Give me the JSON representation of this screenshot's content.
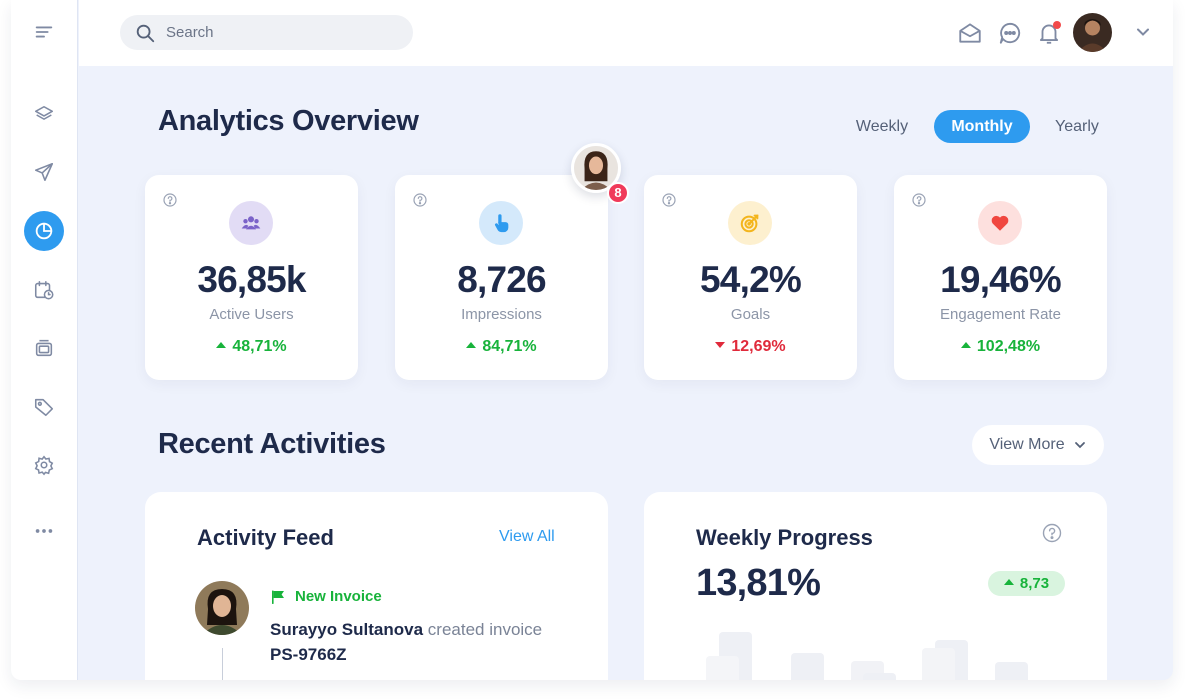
{
  "search": {
    "placeholder": "Search"
  },
  "icons": {
    "menu": "menu-icon",
    "layers": "layers-icon",
    "send": "send-icon",
    "analytics": "pie-chart-icon",
    "calendar": "calendar-clock-icon",
    "media": "media-icon",
    "tag": "tag-icon",
    "settings": "gear-icon",
    "more": "more-dots-icon",
    "mail": "mail-icon",
    "chat": "chat-icon",
    "bell": "bell-icon"
  },
  "colors": {
    "accent": "#2e9bef",
    "positive": "#18b33b",
    "negative": "#e02a3b",
    "background": "#eef2fc"
  },
  "overview": {
    "title": "Analytics Overview",
    "periods": [
      "Weekly",
      "Monthly",
      "Yearly"
    ],
    "selected_period": "Monthly",
    "presence_badge": "8"
  },
  "stats": [
    {
      "value": "36,85k",
      "label": "Active Users",
      "change": "48,71%",
      "trend": "up",
      "icon": "users-icon",
      "icon_bg": "#e2dcf5",
      "icon_color": "#7b63c9"
    },
    {
      "value": "8,726",
      "label": "Impressions",
      "change": "84,71%",
      "trend": "up",
      "icon": "pointer-hand-icon",
      "icon_bg": "#d4e9fb",
      "icon_color": "#2e9bef"
    },
    {
      "value": "54,2%",
      "label": "Goals",
      "change": "12,69%",
      "trend": "down",
      "icon": "target-icon",
      "icon_bg": "#fdf0cf",
      "icon_color": "#f3b51c"
    },
    {
      "value": "19,46%",
      "label": "Engagement Rate",
      "change": "102,48%",
      "trend": "up",
      "icon": "heart-icon",
      "icon_bg": "#fde0de",
      "icon_color": "#f0463f"
    }
  ],
  "recent": {
    "title": "Recent Activities",
    "view_more": "View More"
  },
  "activity_feed": {
    "title": "Activity Feed",
    "view_all": "View All",
    "items": [
      {
        "tag": "New Invoice",
        "user": "Surayyo Sultanova",
        "action": "created invoice",
        "ref": "PS-9766Z"
      }
    ]
  },
  "weekly_progress": {
    "title": "Weekly Progress",
    "value": "13,81%",
    "change": "8,73"
  }
}
